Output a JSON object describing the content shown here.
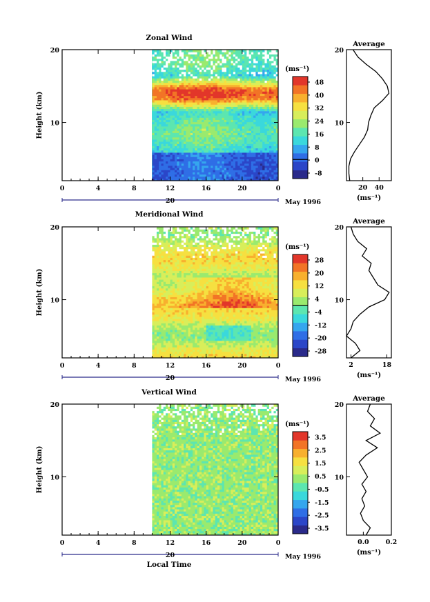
{
  "figure": {
    "date_label": "May 1996",
    "day_label": "20",
    "xlabel": "Local Time"
  },
  "colors": {
    "colormap": [
      "#2a2a8a",
      "#2b46c8",
      "#2f6ee6",
      "#35a6ee",
      "#3ad8dc",
      "#5ce6b0",
      "#9aea6e",
      "#d8ee5a",
      "#f6e040",
      "#f8b02e",
      "#f27426",
      "#e2362a"
    ]
  },
  "chart_data": [
    {
      "type": "heatmap",
      "title": "Zonal Wind",
      "ylabel": "Height (km)",
      "x_ticks": [
        "0",
        "4",
        "8",
        "12",
        "16",
        "20",
        "0"
      ],
      "x_range": [
        0,
        24
      ],
      "data_x_range": [
        10,
        24
      ],
      "y_ticks": [
        "10",
        "20"
      ],
      "ylim": [
        2,
        20
      ],
      "colorbar": {
        "unit": "(ms⁻¹)",
        "ticks": [
          "48",
          "40",
          "32",
          "24",
          "16",
          "8",
          "0",
          "-8"
        ],
        "range": [
          -12,
          52
        ],
        "zero_line": 0
      },
      "profile": {
        "title": "Average",
        "unit": "(ms⁻¹)",
        "x_ticks": [
          "20",
          "40"
        ],
        "xlim": [
          0,
          55
        ],
        "y_ticks": [
          "10",
          "20"
        ],
        "points": [
          [
            4,
            2
          ],
          [
            3,
            3
          ],
          [
            3,
            4
          ],
          [
            5,
            5
          ],
          [
            10,
            6
          ],
          [
            16,
            7
          ],
          [
            22,
            8
          ],
          [
            26,
            9
          ],
          [
            27,
            10
          ],
          [
            30,
            11
          ],
          [
            34,
            12
          ],
          [
            44,
            13
          ],
          [
            52,
            14
          ],
          [
            50,
            15
          ],
          [
            44,
            16
          ],
          [
            36,
            17
          ],
          [
            24,
            18
          ],
          [
            14,
            19
          ],
          [
            8,
            20
          ]
        ]
      }
    },
    {
      "type": "heatmap",
      "title": "Meridional Wind",
      "ylabel": "Height (km)",
      "x_ticks": [
        "0",
        "4",
        "8",
        "12",
        "16",
        "20",
        "0"
      ],
      "x_range": [
        0,
        24
      ],
      "data_x_range": [
        10,
        24
      ],
      "y_ticks": [
        "10",
        "20"
      ],
      "ylim": [
        2,
        20
      ],
      "colorbar": {
        "unit": "(ms⁻¹)",
        "ticks": [
          "28",
          "20",
          "12",
          "4",
          "-4",
          "-12",
          "-20",
          "-28"
        ],
        "range": [
          -32,
          32
        ],
        "zero_line": 0
      },
      "profile": {
        "title": "Average",
        "unit": "(ms⁻¹)",
        "x_ticks": [
          "2",
          "18"
        ],
        "xlim": [
          0,
          20
        ],
        "y_ticks": [
          "10",
          "20"
        ],
        "points": [
          [
            2,
            2
          ],
          [
            6,
            3
          ],
          [
            4,
            4
          ],
          [
            0,
            5
          ],
          [
            2,
            6
          ],
          [
            3,
            7
          ],
          [
            6,
            8
          ],
          [
            10,
            9
          ],
          [
            17,
            10
          ],
          [
            19,
            11
          ],
          [
            14,
            12
          ],
          [
            12,
            13
          ],
          [
            10,
            14
          ],
          [
            11,
            15
          ],
          [
            7,
            16
          ],
          [
            9,
            17
          ],
          [
            5,
            18
          ],
          [
            3,
            19
          ],
          [
            2,
            20
          ]
        ]
      }
    },
    {
      "type": "heatmap",
      "title": "Vertical Wind",
      "ylabel": "Height (km)",
      "x_ticks": [
        "0",
        "4",
        "8",
        "12",
        "16",
        "20",
        "0"
      ],
      "x_range": [
        0,
        24
      ],
      "data_x_range": [
        10,
        24
      ],
      "y_ticks": [
        "10",
        "20"
      ],
      "ylim": [
        2,
        20
      ],
      "colorbar": {
        "unit": "(ms⁻¹)",
        "ticks": [
          "3.5",
          "2.5",
          "1.5",
          "0.5",
          "-0.5",
          "-1.5",
          "-2.5",
          "-3.5"
        ],
        "range": [
          -4,
          4
        ]
      },
      "profile": {
        "title": "Average",
        "unit": "(ms⁻¹)",
        "x_ticks": [
          "0.0",
          "0.2"
        ],
        "xlim": [
          -0.12,
          0.2
        ],
        "y_ticks": [
          "10",
          "20"
        ],
        "points": [
          [
            0.02,
            2
          ],
          [
            0.05,
            3
          ],
          [
            0.0,
            4
          ],
          [
            -0.02,
            5
          ],
          [
            0.01,
            6
          ],
          [
            -0.01,
            7
          ],
          [
            0.02,
            8
          ],
          [
            -0.01,
            9
          ],
          [
            0.03,
            10
          ],
          [
            0.0,
            11
          ],
          [
            -0.03,
            12
          ],
          [
            0.02,
            13
          ],
          [
            0.1,
            14
          ],
          [
            0.02,
            15
          ],
          [
            0.12,
            16
          ],
          [
            0.05,
            17
          ],
          [
            0.08,
            18
          ],
          [
            0.03,
            19
          ],
          [
            0.05,
            20
          ]
        ]
      }
    }
  ]
}
